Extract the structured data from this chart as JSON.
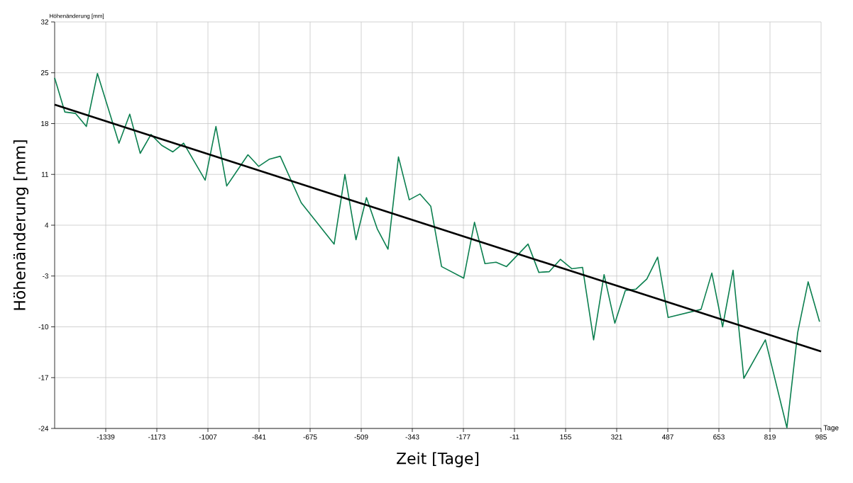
{
  "chart_data": {
    "type": "line",
    "xlabel": "Zeit [Tage]",
    "ylabel": "Höhenänderung [mm]",
    "annotations": [
      "Höhenänderung [mm]",
      "Tage"
    ],
    "xlim": [
      -1505,
      985
    ],
    "xticks": [
      -1339,
      -1173,
      -1007,
      -841,
      -675,
      -509,
      -343,
      -177,
      -11,
      155,
      321,
      487,
      653,
      819,
      985
    ],
    "ylim": [
      -24,
      32
    ],
    "yticks": [
      -24,
      -17,
      -10,
      -3,
      4,
      11,
      18,
      25,
      32
    ],
    "grid": true,
    "series": [
      {
        "type": "line",
        "color": "#0b7f4f",
        "x": [
          -1505,
          -1472,
          -1437,
          -1402,
          -1366,
          -1296,
          -1261,
          -1227,
          -1192,
          -1157,
          -1121,
          -1086,
          -1016,
          -981,
          -946,
          -877,
          -842,
          -807,
          -772,
          -704,
          -597,
          -562,
          -526,
          -492,
          -457,
          -422,
          -388,
          -353,
          -318,
          -283,
          -248,
          -176,
          -141,
          -107,
          -71,
          -37,
          33,
          68,
          102,
          138,
          175,
          210,
          246,
          280,
          315,
          349,
          384,
          419,
          454,
          488,
          595,
          630,
          665,
          699,
          734,
          804,
          874,
          909,
          943,
          980
        ],
        "values": [
          24.3,
          19.6,
          19.4,
          17.6,
          24.9,
          15.3,
          19.3,
          13.9,
          16.5,
          15.0,
          14.1,
          15.3,
          10.2,
          17.6,
          9.4,
          13.7,
          12.1,
          13.1,
          13.5,
          7.1,
          1.4,
          11.0,
          2.0,
          7.8,
          3.5,
          0.7,
          13.4,
          7.5,
          8.3,
          6.6,
          -1.7,
          -3.3,
          4.4,
          -1.3,
          -1.1,
          -1.7,
          1.4,
          -2.5,
          -2.4,
          -0.7,
          -2.0,
          -1.8,
          -11.8,
          -2.8,
          -9.5,
          -5.0,
          -4.8,
          -3.4,
          -0.4,
          -8.7,
          -7.6,
          -2.6,
          -10.0,
          -2.2,
          -17.1,
          -11.8,
          -23.9,
          -10.8,
          -3.8,
          -9.3
        ]
      },
      {
        "type": "line",
        "color": "#000000",
        "x": [
          -1505,
          985
        ],
        "values": [
          20.6,
          -13.4
        ]
      }
    ]
  }
}
